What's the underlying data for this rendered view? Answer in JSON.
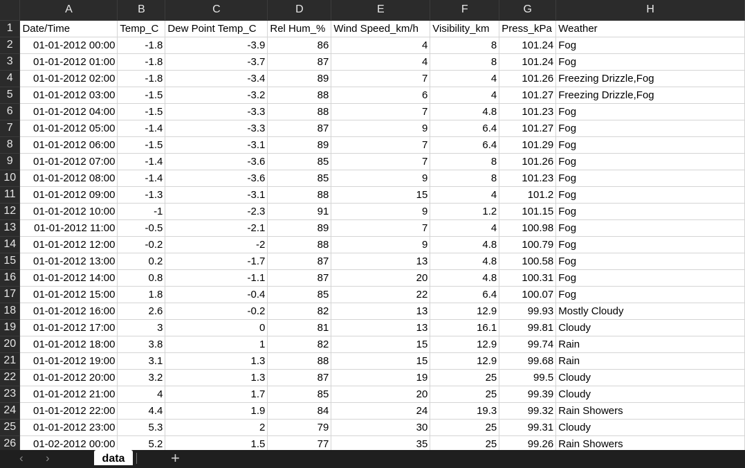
{
  "sheet_tab": "data",
  "add_sheet": "+",
  "columns": [
    "A",
    "B",
    "C",
    "D",
    "E",
    "F",
    "G",
    "H"
  ],
  "header_row": {
    "num": "1",
    "cells": [
      "Date/Time",
      "Temp_C",
      "Dew Point Temp_C",
      "Rel Hum_%",
      "Wind Speed_km/h",
      "Visibility_km",
      "Press_kPa",
      "Weather"
    ]
  },
  "rows": [
    {
      "num": "2",
      "cells": [
        "01-01-2012 00:00",
        "-1.8",
        "-3.9",
        "86",
        "4",
        "8",
        "101.24",
        "Fog"
      ]
    },
    {
      "num": "3",
      "cells": [
        "01-01-2012 01:00",
        "-1.8",
        "-3.7",
        "87",
        "4",
        "8",
        "101.24",
        "Fog"
      ]
    },
    {
      "num": "4",
      "cells": [
        "01-01-2012 02:00",
        "-1.8",
        "-3.4",
        "89",
        "7",
        "4",
        "101.26",
        "Freezing Drizzle,Fog"
      ]
    },
    {
      "num": "5",
      "cells": [
        "01-01-2012 03:00",
        "-1.5",
        "-3.2",
        "88",
        "6",
        "4",
        "101.27",
        "Freezing Drizzle,Fog"
      ]
    },
    {
      "num": "6",
      "cells": [
        "01-01-2012 04:00",
        "-1.5",
        "-3.3",
        "88",
        "7",
        "4.8",
        "101.23",
        "Fog"
      ]
    },
    {
      "num": "7",
      "cells": [
        "01-01-2012 05:00",
        "-1.4",
        "-3.3",
        "87",
        "9",
        "6.4",
        "101.27",
        "Fog"
      ]
    },
    {
      "num": "8",
      "cells": [
        "01-01-2012 06:00",
        "-1.5",
        "-3.1",
        "89",
        "7",
        "6.4",
        "101.29",
        "Fog"
      ]
    },
    {
      "num": "9",
      "cells": [
        "01-01-2012 07:00",
        "-1.4",
        "-3.6",
        "85",
        "7",
        "8",
        "101.26",
        "Fog"
      ]
    },
    {
      "num": "10",
      "cells": [
        "01-01-2012 08:00",
        "-1.4",
        "-3.6",
        "85",
        "9",
        "8",
        "101.23",
        "Fog"
      ]
    },
    {
      "num": "11",
      "cells": [
        "01-01-2012 09:00",
        "-1.3",
        "-3.1",
        "88",
        "15",
        "4",
        "101.2",
        "Fog"
      ]
    },
    {
      "num": "12",
      "cells": [
        "01-01-2012 10:00",
        "-1",
        "-2.3",
        "91",
        "9",
        "1.2",
        "101.15",
        "Fog"
      ]
    },
    {
      "num": "13",
      "cells": [
        "01-01-2012 11:00",
        "-0.5",
        "-2.1",
        "89",
        "7",
        "4",
        "100.98",
        "Fog"
      ]
    },
    {
      "num": "14",
      "cells": [
        "01-01-2012 12:00",
        "-0.2",
        "-2",
        "88",
        "9",
        "4.8",
        "100.79",
        "Fog"
      ]
    },
    {
      "num": "15",
      "cells": [
        "01-01-2012 13:00",
        "0.2",
        "-1.7",
        "87",
        "13",
        "4.8",
        "100.58",
        "Fog"
      ]
    },
    {
      "num": "16",
      "cells": [
        "01-01-2012 14:00",
        "0.8",
        "-1.1",
        "87",
        "20",
        "4.8",
        "100.31",
        "Fog"
      ]
    },
    {
      "num": "17",
      "cells": [
        "01-01-2012 15:00",
        "1.8",
        "-0.4",
        "85",
        "22",
        "6.4",
        "100.07",
        "Fog"
      ]
    },
    {
      "num": "18",
      "cells": [
        "01-01-2012 16:00",
        "2.6",
        "-0.2",
        "82",
        "13",
        "12.9",
        "99.93",
        "Mostly Cloudy"
      ]
    },
    {
      "num": "19",
      "cells": [
        "01-01-2012 17:00",
        "3",
        "0",
        "81",
        "13",
        "16.1",
        "99.81",
        "Cloudy"
      ]
    },
    {
      "num": "20",
      "cells": [
        "01-01-2012 18:00",
        "3.8",
        "1",
        "82",
        "15",
        "12.9",
        "99.74",
        "Rain"
      ]
    },
    {
      "num": "21",
      "cells": [
        "01-01-2012 19:00",
        "3.1",
        "1.3",
        "88",
        "15",
        "12.9",
        "99.68",
        "Rain"
      ]
    },
    {
      "num": "22",
      "cells": [
        "01-01-2012 20:00",
        "3.2",
        "1.3",
        "87",
        "19",
        "25",
        "99.5",
        "Cloudy"
      ]
    },
    {
      "num": "23",
      "cells": [
        "01-01-2012 21:00",
        "4",
        "1.7",
        "85",
        "20",
        "25",
        "99.39",
        "Cloudy"
      ]
    },
    {
      "num": "24",
      "cells": [
        "01-01-2012 22:00",
        "4.4",
        "1.9",
        "84",
        "24",
        "19.3",
        "99.32",
        "Rain Showers"
      ]
    },
    {
      "num": "25",
      "cells": [
        "01-01-2012 23:00",
        "5.3",
        "2",
        "79",
        "30",
        "25",
        "99.31",
        "Cloudy"
      ]
    },
    {
      "num": "26",
      "cells": [
        "01-02-2012 00:00",
        "5.2",
        "1.5",
        "77",
        "35",
        "25",
        "99.26",
        "Rain Showers"
      ]
    }
  ]
}
